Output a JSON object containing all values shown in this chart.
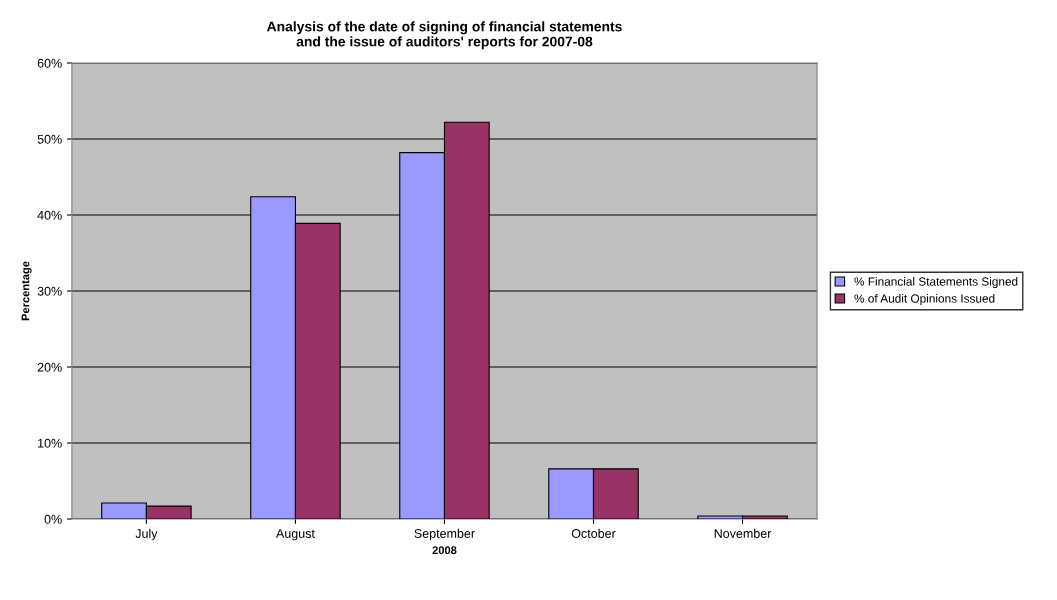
{
  "chart_data": {
    "type": "bar",
    "title": "Analysis of the date of signing of financial statements\nand the issue of auditors' reports for 2007-08",
    "xlabel": "2008",
    "ylabel": "Percentage",
    "categories": [
      "July",
      "August",
      "September",
      "October",
      "November"
    ],
    "series": [
      {
        "name": "% Financial Statements Signed",
        "color": "#9999ff",
        "values": [
          2.1,
          42.4,
          48.2,
          6.6,
          0.4
        ]
      },
      {
        "name": "% of Audit Opinions Issued",
        "color": "#993366",
        "values": [
          1.7,
          38.9,
          52.2,
          6.6,
          0.4
        ]
      }
    ],
    "ylim": [
      0,
      60
    ],
    "yticks": [
      {
        "value": 0,
        "label": "0%"
      },
      {
        "value": 10,
        "label": "10%"
      },
      {
        "value": 20,
        "label": "20%"
      },
      {
        "value": 30,
        "label": "30%"
      },
      {
        "value": 40,
        "label": "40%"
      },
      {
        "value": 50,
        "label": "50%"
      },
      {
        "value": 60,
        "label": "60%"
      }
    ],
    "grid": "y",
    "legend": "right"
  }
}
